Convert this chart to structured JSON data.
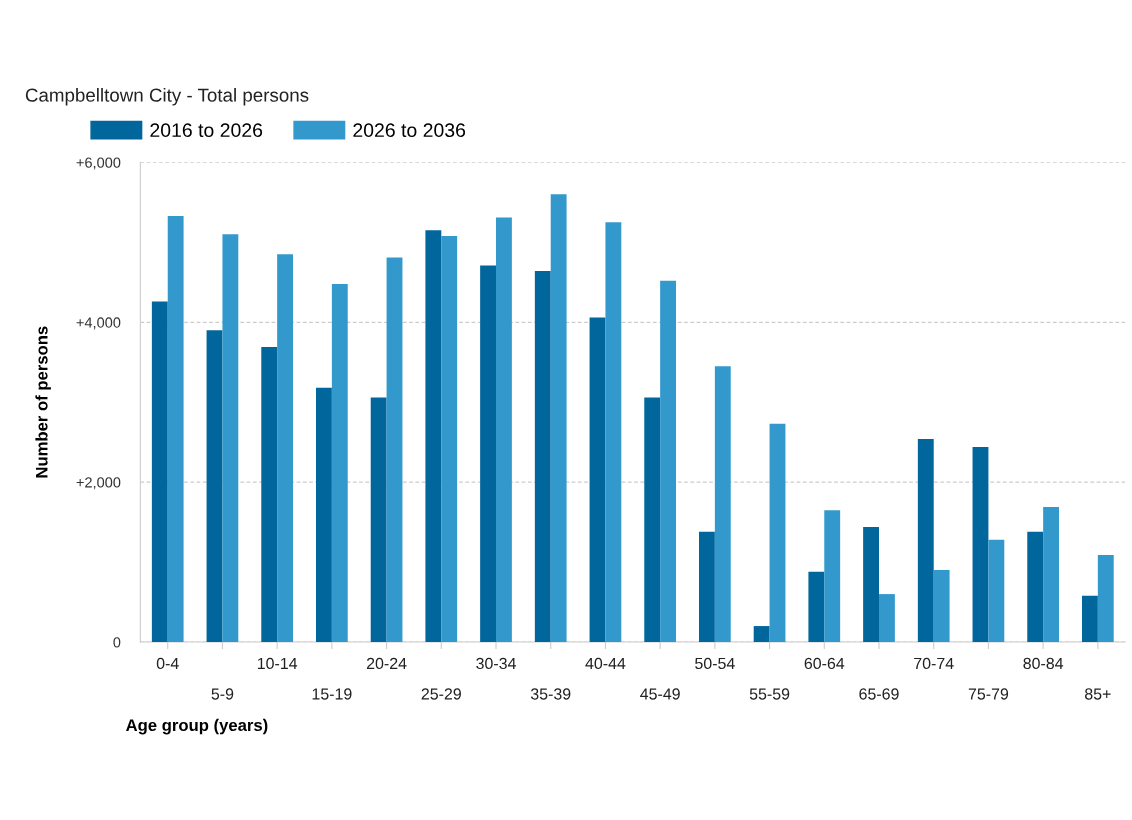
{
  "chart_data": {
    "type": "bar",
    "title": "Campbelltown City - Total persons",
    "xlabel": "Age group (years)",
    "ylabel": "Number of persons",
    "categories": [
      "0-4",
      "5-9",
      "10-14",
      "15-19",
      "20-24",
      "25-29",
      "30-34",
      "35-39",
      "40-44",
      "45-49",
      "50-54",
      "55-59",
      "60-64",
      "65-69",
      "70-74",
      "75-79",
      "80-84",
      "85+"
    ],
    "series": [
      {
        "name": "2016 to 2026",
        "color": "#00669c",
        "values": [
          4260,
          3900,
          3690,
          3180,
          3060,
          5150,
          4710,
          4640,
          4060,
          3060,
          1380,
          200,
          880,
          1440,
          2540,
          2440,
          1380,
          580
        ]
      },
      {
        "name": "2026 to 2036",
        "color": "#3399cc",
        "values": [
          5330,
          5100,
          4850,
          4480,
          4810,
          5080,
          5310,
          5600,
          5250,
          4520,
          3450,
          2730,
          1650,
          600,
          900,
          1280,
          1690,
          1090
        ]
      }
    ],
    "ylim": [
      0,
      6000
    ],
    "yticks": [
      {
        "value": 0,
        "label": "0"
      },
      {
        "value": 2000,
        "label": "+2,000"
      },
      {
        "value": 4000,
        "label": "+4,000"
      },
      {
        "value": 6000,
        "label": "+6,000"
      }
    ],
    "grid": "y",
    "legend": "top left"
  }
}
